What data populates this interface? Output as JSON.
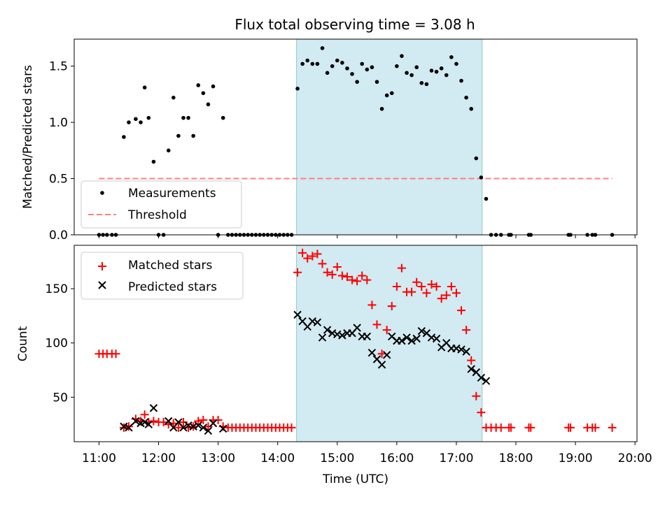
{
  "title": "Flux total observing time = 3.08 h",
  "colors": {
    "measurement": "#000000",
    "threshold": "#ff7f7f",
    "matched": "#ff0000",
    "predicted": "#000000",
    "span": "#add8e6"
  },
  "chart_data": [
    {
      "type": "scatter",
      "ylabel": "Matched/Predicted stars",
      "xlim": [
        "10:35",
        "20:02"
      ],
      "ylim": [
        0,
        1.74
      ],
      "yticks": [
        "0.0",
        "0.5",
        "1.0",
        "1.5"
      ],
      "highlight_span": [
        "14:19",
        "17:26"
      ],
      "legend": {
        "placement": "lower-left",
        "entries": [
          "Measurements",
          "Threshold"
        ]
      },
      "threshold": {
        "name": "Threshold",
        "x": [
          "11:00",
          "19:37"
        ],
        "y": 0.5
      },
      "series": [
        {
          "name": "Measurements",
          "marker": "dot",
          "points": [
            [
              "11:00",
              0
            ],
            [
              "11:04",
              0
            ],
            [
              "11:08",
              0
            ],
            [
              "11:13",
              0
            ],
            [
              "11:17",
              0
            ],
            [
              "11:25",
              0.87
            ],
            [
              "11:30",
              1.0
            ],
            [
              "11:37",
              1.03
            ],
            [
              "11:42",
              1.0
            ],
            [
              "11:46",
              1.31
            ],
            [
              "11:50",
              1.04
            ],
            [
              "11:55",
              0.65
            ],
            [
              "12:00",
              0
            ],
            [
              "12:05",
              0
            ],
            [
              "12:10",
              0.75
            ],
            [
              "12:15",
              1.22
            ],
            [
              "12:20",
              0.88
            ],
            [
              "12:25",
              1.04
            ],
            [
              "12:30",
              1.04
            ],
            [
              "12:35",
              0.88
            ],
            [
              "12:40",
              1.33
            ],
            [
              "12:45",
              1.26
            ],
            [
              "12:50",
              1.16
            ],
            [
              "12:55",
              1.32
            ],
            [
              "13:00",
              0
            ],
            [
              "13:05",
              1.04
            ],
            [
              "13:10",
              0
            ],
            [
              "13:14",
              0
            ],
            [
              "13:18",
              0
            ],
            [
              "13:22",
              0
            ],
            [
              "13:26",
              0
            ],
            [
              "13:30",
              0
            ],
            [
              "13:34",
              0
            ],
            [
              "13:38",
              0
            ],
            [
              "13:42",
              0
            ],
            [
              "13:46",
              0
            ],
            [
              "13:50",
              0
            ],
            [
              "13:54",
              0
            ],
            [
              "13:58",
              0
            ],
            [
              "14:02",
              0
            ],
            [
              "14:06",
              0
            ],
            [
              "14:10",
              0
            ],
            [
              "14:14",
              0
            ],
            [
              "14:20",
              1.3
            ],
            [
              "14:25",
              1.52
            ],
            [
              "14:30",
              1.55
            ],
            [
              "14:35",
              1.52
            ],
            [
              "14:40",
              1.52
            ],
            [
              "14:45",
              1.66
            ],
            [
              "14:50",
              1.44
            ],
            [
              "14:55",
              1.5
            ],
            [
              "15:00",
              1.55
            ],
            [
              "15:05",
              1.53
            ],
            [
              "15:10",
              1.48
            ],
            [
              "15:15",
              1.43
            ],
            [
              "15:20",
              1.36
            ],
            [
              "15:25",
              1.52
            ],
            [
              "15:30",
              1.47
            ],
            [
              "15:35",
              1.49
            ],
            [
              "15:40",
              1.36
            ],
            [
              "15:45",
              1.12
            ],
            [
              "15:50",
              1.24
            ],
            [
              "15:55",
              1.26
            ],
            [
              "16:00",
              1.5
            ],
            [
              "16:05",
              1.59
            ],
            [
              "16:10",
              1.44
            ],
            [
              "16:15",
              1.42
            ],
            [
              "16:20",
              1.49
            ],
            [
              "16:25",
              1.35
            ],
            [
              "16:30",
              1.34
            ],
            [
              "16:35",
              1.46
            ],
            [
              "16:40",
              1.45
            ],
            [
              "16:45",
              1.48
            ],
            [
              "16:50",
              1.42
            ],
            [
              "16:55",
              1.58
            ],
            [
              "17:00",
              1.52
            ],
            [
              "17:05",
              1.37
            ],
            [
              "17:10",
              1.22
            ],
            [
              "17:15",
              1.12
            ],
            [
              "17:20",
              0.68
            ],
            [
              "17:25",
              0.51
            ],
            [
              "17:30",
              0.32
            ],
            [
              "17:35",
              0
            ],
            [
              "17:40",
              0
            ],
            [
              "17:45",
              0
            ],
            [
              "17:53",
              0
            ],
            [
              "17:55",
              0
            ],
            [
              "18:13",
              0
            ],
            [
              "18:15",
              0
            ],
            [
              "18:53",
              0
            ],
            [
              "18:55",
              0
            ],
            [
              "19:12",
              0
            ],
            [
              "19:17",
              0
            ],
            [
              "19:20",
              0
            ],
            [
              "19:37",
              0
            ]
          ]
        }
      ]
    },
    {
      "type": "scatter",
      "xlabel": "Time (UTC)",
      "ylabel": "Count",
      "xlim": [
        "10:35",
        "20:02"
      ],
      "ylim": [
        9,
        190
      ],
      "yticks": [
        "50",
        "100",
        "150"
      ],
      "xticks": [
        "11:00",
        "12:00",
        "13:00",
        "14:00",
        "15:00",
        "16:00",
        "17:00",
        "18:00",
        "19:00",
        "20:00"
      ],
      "highlight_span": [
        "14:19",
        "17:26"
      ],
      "legend": {
        "placement": "upper-left",
        "entries": [
          "Matched stars",
          "Predicted stars"
        ]
      },
      "series": [
        {
          "name": "Matched stars",
          "marker": "plus",
          "points": [
            [
              "11:00",
              90
            ],
            [
              "11:04",
              90
            ],
            [
              "11:08",
              90
            ],
            [
              "11:13",
              90
            ],
            [
              "11:17",
              90
            ],
            [
              "11:25",
              22
            ],
            [
              "11:30",
              23
            ],
            [
              "11:37",
              30
            ],
            [
              "11:42",
              28
            ],
            [
              "11:46",
              34
            ],
            [
              "11:50",
              27
            ],
            [
              "11:55",
              28
            ],
            [
              "12:00",
              27
            ],
            [
              "12:05",
              27
            ],
            [
              "12:10",
              25
            ],
            [
              "12:15",
              26
            ],
            [
              "12:20",
              22
            ],
            [
              "12:25",
              27
            ],
            [
              "12:30",
              22
            ],
            [
              "12:35",
              23
            ],
            [
              "12:40",
              28
            ],
            [
              "12:45",
              29
            ],
            [
              "12:50",
              23
            ],
            [
              "12:55",
              29
            ],
            [
              "13:00",
              29
            ],
            [
              "13:05",
              23
            ],
            [
              "13:10",
              22
            ],
            [
              "13:14",
              22
            ],
            [
              "13:18",
              22
            ],
            [
              "13:22",
              22
            ],
            [
              "13:26",
              22
            ],
            [
              "13:30",
              22
            ],
            [
              "13:34",
              22
            ],
            [
              "13:38",
              22
            ],
            [
              "13:42",
              22
            ],
            [
              "13:46",
              22
            ],
            [
              "13:50",
              22
            ],
            [
              "13:54",
              22
            ],
            [
              "13:58",
              22
            ],
            [
              "14:02",
              22
            ],
            [
              "14:06",
              22
            ],
            [
              "14:10",
              22
            ],
            [
              "14:14",
              22
            ],
            [
              "14:20",
              165
            ],
            [
              "14:25",
              183
            ],
            [
              "14:30",
              178
            ],
            [
              "14:35",
              180
            ],
            [
              "14:40",
              182
            ],
            [
              "14:45",
              173
            ],
            [
              "14:50",
              165
            ],
            [
              "14:55",
              163
            ],
            [
              "15:00",
              170
            ],
            [
              "15:05",
              162
            ],
            [
              "15:10",
              161
            ],
            [
              "15:15",
              158
            ],
            [
              "15:20",
              157
            ],
            [
              "15:25",
              162
            ],
            [
              "15:30",
              158
            ],
            [
              "15:35",
              135
            ],
            [
              "15:40",
              117
            ],
            [
              "15:45",
              90
            ],
            [
              "15:50",
              112
            ],
            [
              "15:55",
              134
            ],
            [
              "16:00",
              152
            ],
            [
              "16:05",
              169
            ],
            [
              "16:10",
              147
            ],
            [
              "16:15",
              147
            ],
            [
              "16:20",
              156
            ],
            [
              "16:25",
              152
            ],
            [
              "16:30",
              146
            ],
            [
              "16:35",
              154
            ],
            [
              "16:40",
              152
            ],
            [
              "16:45",
              141
            ],
            [
              "16:50",
              144
            ],
            [
              "16:55",
              152
            ],
            [
              "17:00",
              146
            ],
            [
              "17:05",
              130
            ],
            [
              "17:10",
              112
            ],
            [
              "17:15",
              84
            ],
            [
              "17:20",
              51
            ],
            [
              "17:25",
              36
            ],
            [
              "17:30",
              22
            ],
            [
              "17:35",
              22
            ],
            [
              "17:40",
              22
            ],
            [
              "17:45",
              22
            ],
            [
              "17:53",
              22
            ],
            [
              "17:55",
              22
            ],
            [
              "18:13",
              22
            ],
            [
              "18:15",
              22
            ],
            [
              "18:53",
              22
            ],
            [
              "18:55",
              22
            ],
            [
              "19:12",
              22
            ],
            [
              "19:17",
              22
            ],
            [
              "19:20",
              22
            ],
            [
              "19:37",
              22
            ]
          ]
        },
        {
          "name": "Predicted stars",
          "marker": "x",
          "points": [
            [
              "11:25",
              23
            ],
            [
              "11:30",
              22
            ],
            [
              "11:37",
              28
            ],
            [
              "11:42",
              26
            ],
            [
              "11:46",
              27
            ],
            [
              "11:50",
              25
            ],
            [
              "11:55",
              40
            ],
            [
              "12:10",
              28
            ],
            [
              "12:15",
              22
            ],
            [
              "12:20",
              27
            ],
            [
              "12:25",
              22
            ],
            [
              "12:30",
              24
            ],
            [
              "12:35",
              23
            ],
            [
              "12:40",
              24
            ],
            [
              "12:45",
              22
            ],
            [
              "12:50",
              19
            ],
            [
              "12:55",
              26
            ],
            [
              "13:05",
              21
            ],
            [
              "14:20",
              126
            ],
            [
              "14:25",
              120
            ],
            [
              "14:30",
              115
            ],
            [
              "14:35",
              120
            ],
            [
              "14:40",
              119
            ],
            [
              "14:45",
              105
            ],
            [
              "14:50",
              112
            ],
            [
              "14:55",
              109
            ],
            [
              "15:00",
              108
            ],
            [
              "15:05",
              107
            ],
            [
              "15:10",
              109
            ],
            [
              "15:15",
              109
            ],
            [
              "15:20",
              114
            ],
            [
              "15:25",
              106
            ],
            [
              "15:30",
              106
            ],
            [
              "15:35",
              91
            ],
            [
              "15:40",
              85
            ],
            [
              "15:45",
              80
            ],
            [
              "15:50",
              89
            ],
            [
              "15:55",
              106
            ],
            [
              "16:00",
              102
            ],
            [
              "16:05",
              102
            ],
            [
              "16:10",
              105
            ],
            [
              "16:15",
              102
            ],
            [
              "16:20",
              104
            ],
            [
              "16:25",
              111
            ],
            [
              "16:30",
              109
            ],
            [
              "16:35",
              105
            ],
            [
              "16:40",
              104
            ],
            [
              "16:45",
              96
            ],
            [
              "16:50",
              100
            ],
            [
              "16:55",
              95
            ],
            [
              "17:00",
              95
            ],
            [
              "17:05",
              94
            ],
            [
              "17:10",
              92
            ],
            [
              "17:15",
              76
            ],
            [
              "17:20",
              73
            ],
            [
              "17:25",
              68
            ],
            [
              "17:30",
              65
            ]
          ]
        }
      ]
    }
  ]
}
